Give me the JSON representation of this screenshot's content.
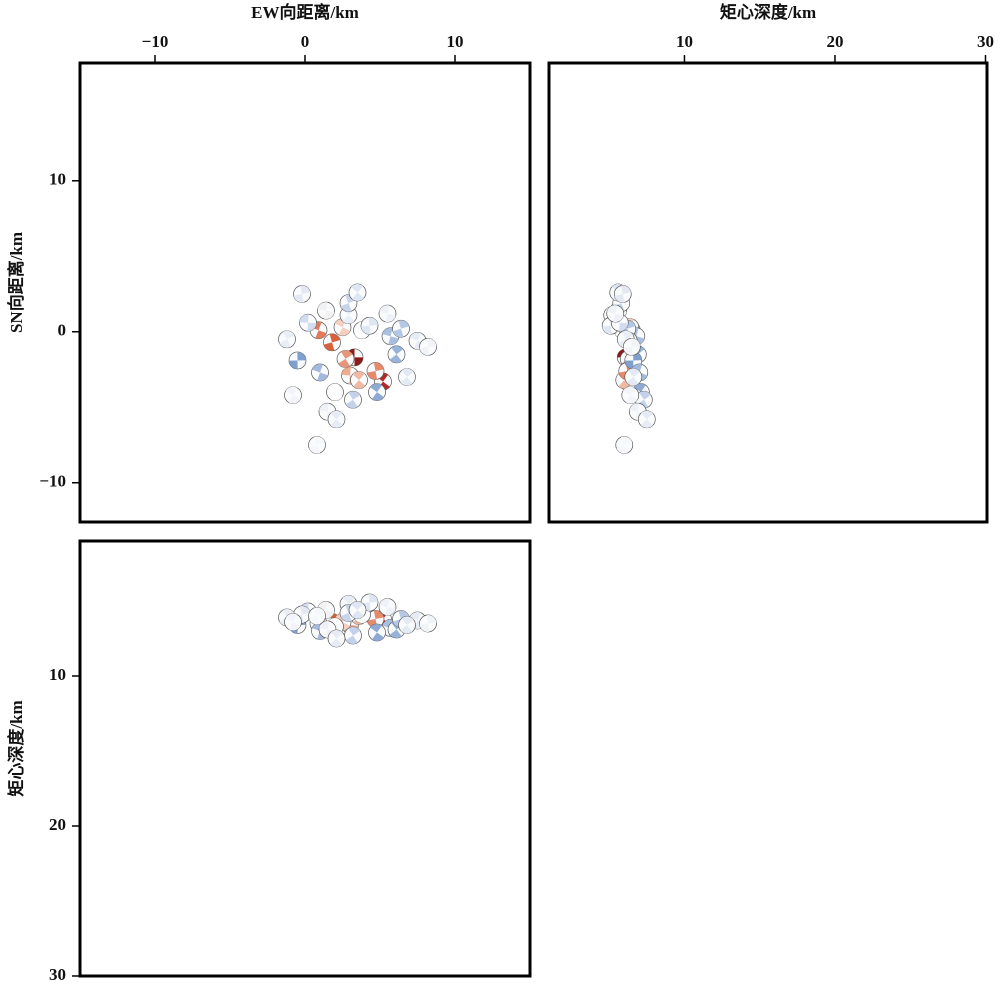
{
  "chart_data": [
    {
      "type": "scatter",
      "xlabel": "EW向距离/km",
      "ylabel": "SN向距离/km",
      "xlim": [
        -15,
        15
      ],
      "ylim": [
        -12.6,
        17.8
      ],
      "xticks": [
        {
          "value": -10,
          "label": "−10"
        },
        0,
        10
      ],
      "yticks": [
        10,
        0,
        {
          "value": -10,
          "label": "−10"
        }
      ],
      "x": [
        3.3,
        5.2,
        1.8,
        0.9,
        2.7,
        3.0,
        3.6,
        4.7,
        2.5,
        3.8,
        1.4,
        2.9,
        4.3,
        2.0,
        2.9,
        5.7,
        6.1,
        -0.5,
        4.8,
        6.4,
        1.0,
        3.2,
        0.2,
        3.5,
        -0.2,
        7.5,
        -1.2,
        1.5,
        2.1,
        8.2,
        -0.8,
        0.8,
        5.5,
        6.8
      ],
      "values": [
        -1.7,
        -3.3,
        -0.7,
        0.1,
        -1.8,
        -2.9,
        -3.2,
        -2.6,
        0.3,
        0.1,
        1.4,
        1.1,
        0.4,
        -4.0,
        1.9,
        -0.3,
        -1.5,
        -1.9,
        -4.0,
        0.2,
        -2.7,
        -4.5,
        0.6,
        2.6,
        2.5,
        -0.6,
        -0.5,
        -5.3,
        -5.8,
        -1.0,
        -4.2,
        -7.5,
        1.2,
        -3.0
      ],
      "colors": [
        "#8b1a1a",
        "#b22a2a",
        "#d9603b",
        "#e07a5a",
        "#e8967a",
        "#efaa8f",
        "#f0b9a3",
        "#e58a6a",
        "#f5d0c0",
        "#ffffff",
        "#f2f2f2",
        "#e8eef6",
        "#dde6f2",
        "#ffffff",
        "#c7d5ea",
        "#a9bfe0",
        "#98b3d9",
        "#7f9fcf",
        "#8fa9d5",
        "#b4c7e5",
        "#a3b9dd",
        "#c3d2ea",
        "#d2dcee",
        "#dfe6f3",
        "#e3e8f3",
        "#e6ebf5",
        "#e9edf5",
        "#eef1f7",
        "#e6ebf5",
        "#f0f3f8",
        "#f2f4f9",
        "#f5f7fa",
        "#eef2f8",
        "#e4eaf4"
      ]
    },
    {
      "type": "scatter",
      "xlabel": "矩心深度/km",
      "xlim": [
        1,
        30.1
      ],
      "ylim": [
        -12.6,
        17.8
      ],
      "xticks": [
        10,
        20,
        30
      ],
      "x": [
        6.1,
        6.2,
        6.4,
        6.5,
        6.3,
        6.6,
        6.0,
        6.2,
        6.4,
        5.9,
        5.6,
        5.2,
        5.1,
        6.7,
        5.8,
        6.8,
        6.9,
        6.6,
        7.1,
        6.2,
        7.0,
        7.3,
        5.7,
        5.6,
        5.9,
        6.3,
        6.1,
        6.9,
        7.5,
        6.5,
        6.4,
        6.0,
        5.4,
        6.6
      ],
      "values": [
        -1.7,
        -3.3,
        -0.7,
        0.1,
        -1.8,
        -2.9,
        -3.2,
        -2.6,
        0.3,
        0.1,
        1.4,
        1.1,
        0.4,
        -4.0,
        1.9,
        -0.3,
        -1.5,
        -1.9,
        -4.0,
        0.2,
        -2.7,
        -4.5,
        0.6,
        2.6,
        2.5,
        -0.6,
        -0.5,
        -5.3,
        -5.8,
        -1.0,
        -4.2,
        -7.5,
        1.2,
        -3.0
      ],
      "colors": [
        "#8b1a1a",
        "#b22a2a",
        "#d9603b",
        "#e07a5a",
        "#e8967a",
        "#efaa8f",
        "#f0b9a3",
        "#e58a6a",
        "#f5d0c0",
        "#ffffff",
        "#f2f2f2",
        "#e8eef6",
        "#dde6f2",
        "#ffffff",
        "#c7d5ea",
        "#a9bfe0",
        "#98b3d9",
        "#7f9fcf",
        "#8fa9d5",
        "#b4c7e5",
        "#a3b9dd",
        "#c3d2ea",
        "#d2dcee",
        "#dfe6f3",
        "#e3e8f3",
        "#e6ebf5",
        "#e9edf5",
        "#eef1f7",
        "#e6ebf5",
        "#f0f3f8",
        "#f2f4f9",
        "#f5f7fa",
        "#eef2f8",
        "#e4eaf4"
      ]
    },
    {
      "type": "scatter",
      "ylabel": "矩心深度/km",
      "xlim": [
        -15,
        15
      ],
      "ylim": [
        30,
        1
      ],
      "yticks": [
        10,
        20,
        30
      ],
      "x": [
        3.3,
        5.2,
        1.8,
        0.9,
        2.7,
        3.0,
        3.6,
        4.7,
        2.5,
        3.8,
        1.4,
        2.9,
        4.3,
        2.0,
        2.9,
        5.7,
        6.1,
        -0.5,
        4.8,
        6.4,
        1.0,
        3.2,
        0.2,
        3.5,
        -0.2,
        7.5,
        -1.2,
        1.5,
        2.1,
        8.2,
        -0.8,
        0.8,
        5.5,
        6.8
      ],
      "values": [
        6.1,
        6.2,
        6.4,
        6.5,
        6.3,
        6.6,
        6.0,
        6.2,
        6.4,
        5.9,
        5.6,
        5.2,
        5.1,
        6.7,
        5.8,
        6.8,
        6.9,
        6.6,
        7.1,
        6.2,
        7.0,
        7.3,
        5.7,
        5.6,
        5.9,
        6.3,
        6.1,
        6.9,
        7.5,
        6.5,
        6.4,
        6.0,
        5.4,
        6.6
      ],
      "colors": [
        "#8b1a1a",
        "#b22a2a",
        "#d9603b",
        "#e07a5a",
        "#e8967a",
        "#efaa8f",
        "#f0b9a3",
        "#e58a6a",
        "#f5d0c0",
        "#ffffff",
        "#f2f2f2",
        "#e8eef6",
        "#dde6f2",
        "#ffffff",
        "#c7d5ea",
        "#a9bfe0",
        "#98b3d9",
        "#7f9fcf",
        "#8fa9d5",
        "#b4c7e5",
        "#a3b9dd",
        "#c3d2ea",
        "#d2dcee",
        "#dfe6f3",
        "#e3e8f3",
        "#e6ebf5",
        "#e9edf5",
        "#eef1f7",
        "#e6ebf5",
        "#f0f3f8",
        "#f2f4f9",
        "#f5f7fa",
        "#eef2f8",
        "#e4eaf4"
      ]
    }
  ]
}
